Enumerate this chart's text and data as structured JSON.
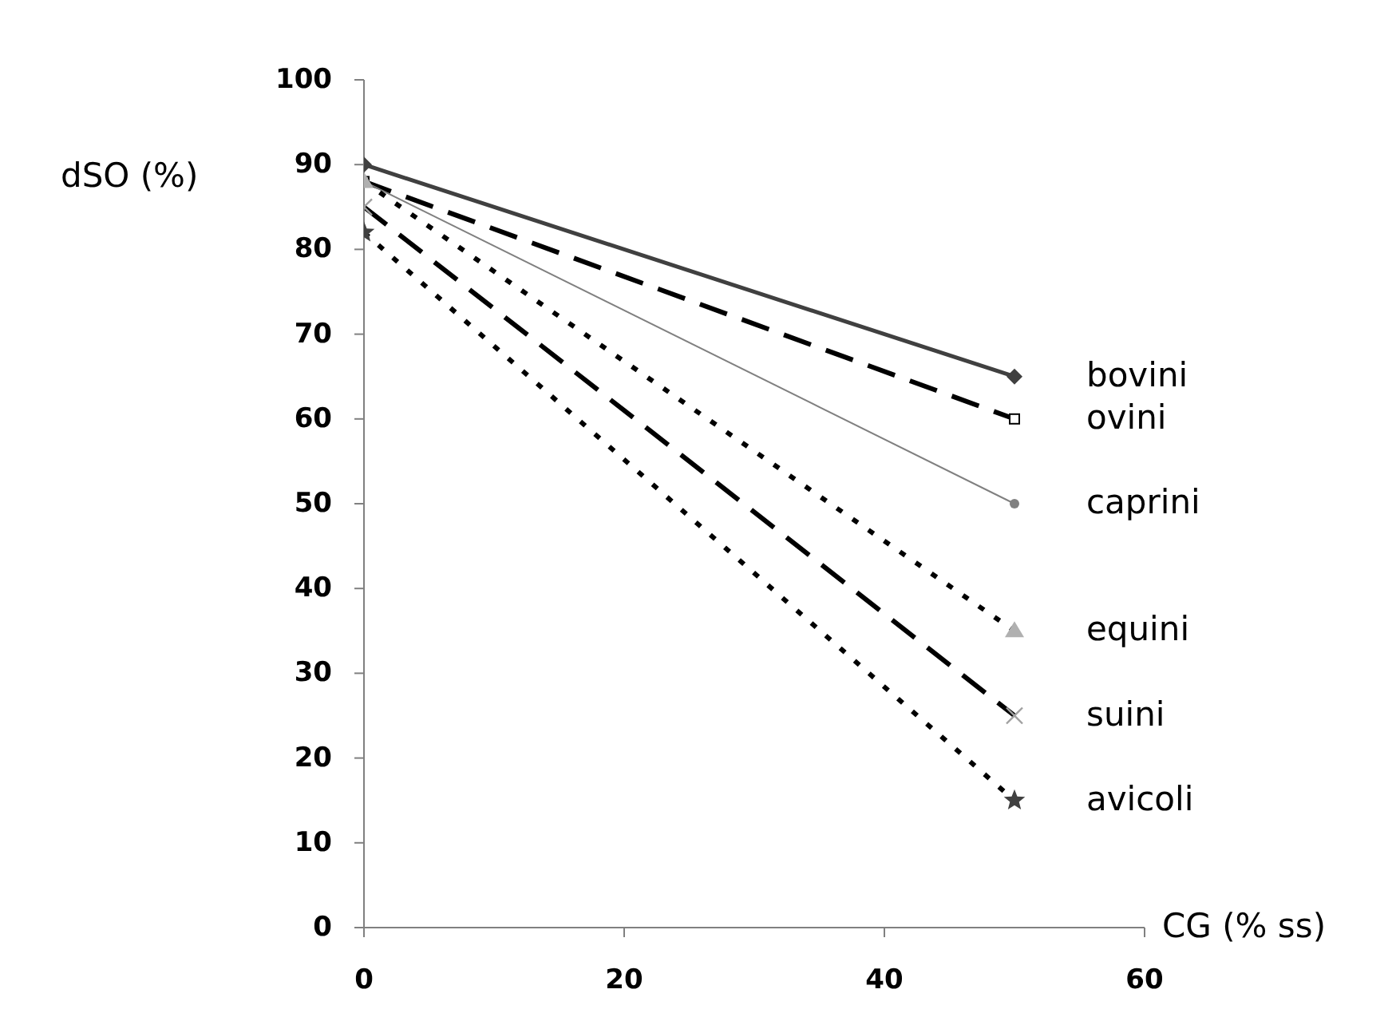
{
  "chart_data": {
    "type": "line",
    "xlabel": "CG (% ss)",
    "ylabel": "dSO (%)",
    "x": [
      0,
      50
    ],
    "series": [
      {
        "name": "bovini",
        "color": "#404040",
        "values": [
          90,
          65
        ],
        "marker": "diamond",
        "line_style": "solid"
      },
      {
        "name": "ovini",
        "color": "#000000",
        "values": [
          88,
          60
        ],
        "marker": "square",
        "line_style": "dashed"
      },
      {
        "name": "caprini",
        "color": "#808080",
        "values": [
          88,
          50
        ],
        "marker": "circle",
        "line_style": "solid"
      },
      {
        "name": "equini",
        "color": "#000000",
        "values": [
          88,
          35
        ],
        "marker": "triangle",
        "line_style": "dotted"
      },
      {
        "name": "suini",
        "color": "#000000",
        "values": [
          85,
          25
        ],
        "marker": "cross",
        "line_style": "dashed"
      },
      {
        "name": "avicoli",
        "color": "#000000",
        "values": [
          82,
          15
        ],
        "marker": "star",
        "line_style": "dotted"
      }
    ],
    "xlim": [
      0,
      60
    ],
    "xticks": [
      0,
      20,
      40,
      60
    ],
    "ylim": [
      0,
      100
    ],
    "yticks": [
      0,
      10,
      20,
      30,
      40,
      50,
      60,
      70,
      80,
      90,
      100
    ],
    "grid": false,
    "legend": false
  }
}
